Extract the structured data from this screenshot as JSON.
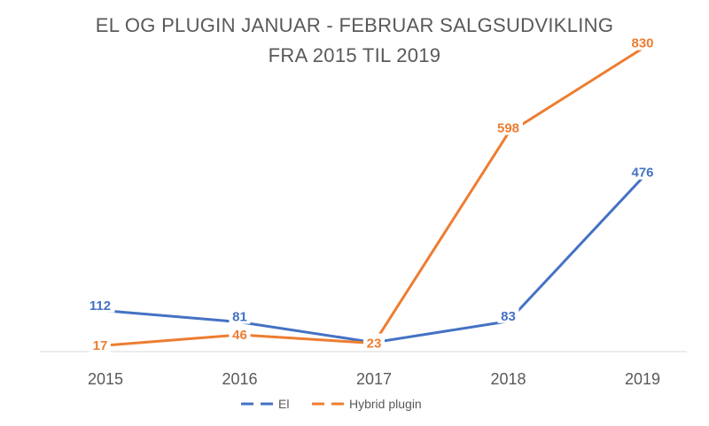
{
  "title_line1": "EL OG PLUGIN JANUAR - FEBRUAR SALGSUDVIKLING",
  "title_line2": "FRA 2015 TIL 2019",
  "chart_data": {
    "type": "line",
    "title": "EL OG PLUGIN JANUAR - FEBRUAR SALGSUDVIKLING FRA 2015 TIL 2019",
    "categories": [
      "2015",
      "2016",
      "2017",
      "2018",
      "2019"
    ],
    "series": [
      {
        "name": "El",
        "values": [
          112,
          81,
          25,
          83,
          476
        ],
        "color": "#4472C4"
      },
      {
        "name": "Hybrid plugin",
        "values": [
          17,
          46,
          23,
          598,
          830
        ],
        "color": "#ED7D31"
      }
    ],
    "xlabel": "",
    "ylabel": "",
    "ylim": [
      0,
      900
    ],
    "grid": false,
    "legend": "bottom",
    "value_labels": true
  }
}
